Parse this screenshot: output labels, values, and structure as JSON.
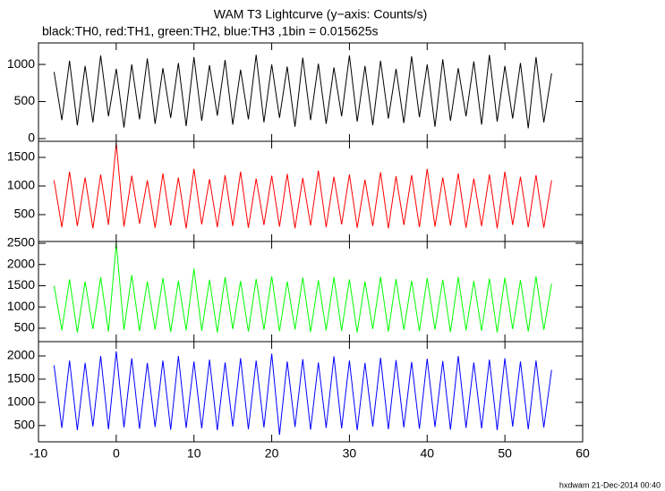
{
  "chart_data": [
    {
      "type": "line",
      "title": "WAM T3 Lightcurve (y−axis: Counts/s)",
      "subtitle": "black:TH0, red:TH1, green:TH2, blue:TH3 ,1bin = 0.015625s",
      "x": [
        -8,
        -7,
        -6,
        -5,
        -4,
        -3,
        -2,
        -1,
        0,
        1,
        2,
        3,
        4,
        5,
        6,
        7,
        8,
        9,
        10,
        11,
        12,
        13,
        14,
        15,
        16,
        17,
        18,
        19,
        20,
        21,
        22,
        23,
        24,
        25,
        26,
        27,
        28,
        29,
        30,
        31,
        32,
        33,
        34,
        35,
        36,
        37,
        38,
        39,
        40,
        41,
        42,
        43,
        44,
        45,
        46,
        47,
        48,
        49,
        50,
        51,
        52,
        53,
        54,
        55,
        56
      ],
      "series": [
        {
          "name": "TH0",
          "color": "#000000",
          "values": [
            900,
            250,
            1050,
            180,
            980,
            220,
            1120,
            300,
            940,
            150,
            1000,
            260,
            1080,
            200,
            950,
            280,
            1020,
            170,
            1100,
            240,
            990,
            310,
            1060,
            190,
            930,
            260,
            1130,
            220,
            1000,
            280,
            970,
            160,
            1090,
            250,
            1010,
            200,
            960,
            300,
            1120,
            230,
            980,
            180,
            1050,
            270,
            940,
            210,
            1110,
            290,
            1000,
            160,
            1070,
            240,
            950,
            300,
            1040,
            190,
            1130,
            230,
            980,
            270,
            1020,
            140,
            1100,
            220,
            880
          ]
        }
      ],
      "xlim": [
        -10,
        60
      ],
      "ylim": [
        -36,
        1290
      ],
      "yticks": [
        0,
        500,
        1000
      ]
    },
    {
      "type": "line",
      "x": [
        -8,
        -7,
        -6,
        -5,
        -4,
        -3,
        -2,
        -1,
        0,
        1,
        2,
        3,
        4,
        5,
        6,
        7,
        8,
        9,
        10,
        11,
        12,
        13,
        14,
        15,
        16,
        17,
        18,
        19,
        20,
        21,
        22,
        23,
        24,
        25,
        26,
        27,
        28,
        29,
        30,
        31,
        32,
        33,
        34,
        35,
        36,
        37,
        38,
        39,
        40,
        41,
        42,
        43,
        44,
        45,
        46,
        47,
        48,
        49,
        50,
        51,
        52,
        53,
        54,
        55,
        56
      ],
      "series": [
        {
          "name": "TH1",
          "color": "#ff0000",
          "values": [
            1100,
            280,
            1250,
            300,
            1150,
            260,
            1200,
            320,
            1750,
            290,
            1180,
            340,
            1100,
            270,
            1220,
            310,
            1150,
            260,
            1300,
            330,
            1120,
            280,
            1190,
            300,
            1250,
            270,
            1130,
            320,
            1180,
            290,
            1210,
            260,
            1140,
            310,
            1270,
            280,
            1160,
            330,
            1200,
            270,
            1110,
            300,
            1240,
            260,
            1170,
            320,
            1190,
            280,
            1300,
            290,
            1150,
            310,
            1220,
            270,
            1130,
            300,
            1200,
            260,
            1250,
            320,
            1160,
            280,
            1190,
            270,
            1100
          ]
        }
      ],
      "xlim": [
        -10,
        60
      ],
      "ylim": [
        31,
        1781
      ],
      "yticks": [
        500,
        1000,
        1500
      ]
    },
    {
      "type": "line",
      "x": [
        -8,
        -7,
        -6,
        -5,
        -4,
        -3,
        -2,
        -1,
        0,
        1,
        2,
        3,
        4,
        5,
        6,
        7,
        8,
        9,
        10,
        11,
        12,
        13,
        14,
        15,
        16,
        17,
        18,
        19,
        20,
        21,
        22,
        23,
        24,
        25,
        26,
        27,
        28,
        29,
        30,
        31,
        32,
        33,
        34,
        35,
        36,
        37,
        38,
        39,
        40,
        41,
        42,
        43,
        44,
        45,
        46,
        47,
        48,
        49,
        50,
        51,
        52,
        53,
        54,
        55,
        56
      ],
      "series": [
        {
          "name": "TH2",
          "color": "#00ff00",
          "values": [
            1500,
            450,
            1650,
            400,
            1600,
            480,
            1700,
            420,
            2500,
            460,
            1750,
            430,
            1600,
            470,
            1680,
            410,
            1620,
            450,
            1900,
            440,
            1640,
            400,
            1700,
            480,
            1610,
            420,
            1660,
            460,
            1720,
            430,
            1600,
            470,
            1690,
            410,
            1630,
            450,
            1700,
            440,
            1650,
            400,
            1600,
            480,
            1710,
            420,
            1660,
            460,
            1620,
            430,
            1680,
            470,
            1640,
            410,
            1700,
            450,
            1610,
            440,
            1670,
            400,
            1690,
            480,
            1630,
            420,
            1720,
            460,
            1550
          ]
        }
      ],
      "xlim": [
        -10,
        60
      ],
      "ylim": [
        183,
        2542
      ],
      "yticks": [
        500,
        1000,
        1500,
        2000,
        2500
      ]
    },
    {
      "type": "line",
      "x": [
        -8,
        -7,
        -6,
        -5,
        -4,
        -3,
        -2,
        -1,
        0,
        1,
        2,
        3,
        4,
        5,
        6,
        7,
        8,
        9,
        10,
        11,
        12,
        13,
        14,
        15,
        16,
        17,
        18,
        19,
        20,
        21,
        22,
        23,
        24,
        25,
        26,
        27,
        28,
        29,
        30,
        31,
        32,
        33,
        34,
        35,
        36,
        37,
        38,
        39,
        40,
        41,
        42,
        43,
        44,
        45,
        46,
        47,
        48,
        49,
        50,
        51,
        52,
        53,
        54,
        55,
        56
      ],
      "series": [
        {
          "name": "TH3",
          "color": "#0000ff",
          "values": [
            1800,
            450,
            1900,
            400,
            1850,
            480,
            2000,
            420,
            2100,
            460,
            1950,
            430,
            1850,
            470,
            1900,
            410,
            2000,
            450,
            1880,
            440,
            1920,
            400,
            1860,
            480,
            1950,
            420,
            1900,
            460,
            2050,
            300,
            1880,
            470,
            1930,
            410,
            1860,
            450,
            1990,
            440,
            1900,
            400,
            1850,
            480,
            1960,
            420,
            1910,
            460,
            1870,
            430,
            1940,
            470,
            1890,
            410,
            2000,
            450,
            1860,
            440,
            1920,
            400,
            1950,
            480,
            1880,
            420,
            1900,
            460,
            1700
          ]
        }
      ],
      "xlim": [
        -10,
        60
      ],
      "ylim": [
        150,
        2308
      ],
      "yticks": [
        500,
        1000,
        1500,
        2000
      ],
      "xticks": [
        -10,
        0,
        10,
        20,
        30,
        40,
        50,
        60
      ]
    }
  ],
  "footer": "hxdwam 21-Dec-2014 00:40"
}
